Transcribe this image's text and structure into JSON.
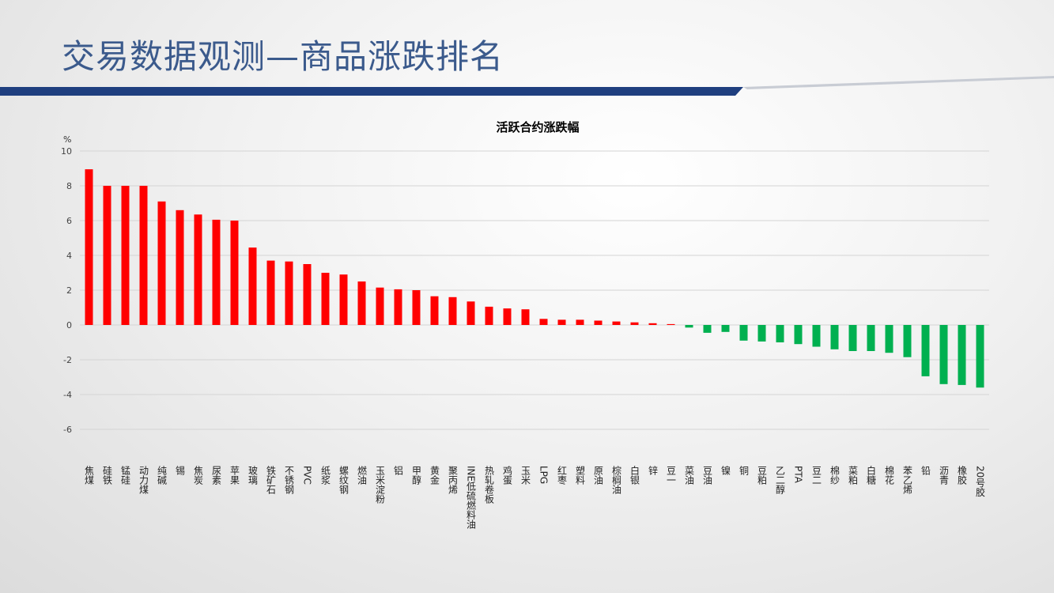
{
  "header": {
    "title": "交易数据观测—商品涨跌排名"
  },
  "chart_data": {
    "type": "bar",
    "title": "活跃合约涨跌幅",
    "y_label": "%",
    "categories": [
      "焦煤",
      "硅铁",
      "锰硅",
      "动力煤",
      "纯碱",
      "锡",
      "焦炭",
      "尿素",
      "苹果",
      "玻璃",
      "铁矿石",
      "不锈钢",
      "PVC",
      "纸浆",
      "螺纹钢",
      "燃油",
      "玉米淀粉",
      "铝",
      "甲醇",
      "黄金",
      "聚丙烯",
      "INE低硫燃料油",
      "热轧卷板",
      "鸡蛋",
      "玉米",
      "LPG",
      "红枣",
      "塑料",
      "原油",
      "棕榈油",
      "白银",
      "锌",
      "豆一",
      "菜油",
      "豆油",
      "镍",
      "铜",
      "豆粕",
      "乙二醇",
      "PTA",
      "豆二",
      "棉纱",
      "菜粕",
      "白糖",
      "棉花",
      "苯乙烯",
      "铅",
      "沥青",
      "橡胶",
      "20号胶"
    ],
    "values": [
      8.95,
      8.0,
      8.0,
      8.0,
      7.1,
      6.6,
      6.35,
      6.05,
      6.0,
      4.45,
      3.7,
      3.65,
      3.5,
      3.0,
      2.9,
      2.5,
      2.15,
      2.05,
      2.0,
      1.65,
      1.6,
      1.35,
      1.05,
      0.95,
      0.9,
      0.35,
      0.3,
      0.3,
      0.25,
      0.2,
      0.15,
      0.1,
      0.05,
      -0.15,
      -0.45,
      -0.4,
      -0.9,
      -0.95,
      -1.0,
      -1.1,
      -1.25,
      -1.4,
      -1.5,
      -1.5,
      -1.6,
      -1.85,
      -2.95,
      -3.4,
      -3.45,
      -3.6
    ],
    "positive_color": "#ff0000",
    "negative_color": "#00b050",
    "ylim": [
      -8,
      10
    ],
    "yticks": [
      -6,
      -4,
      -2,
      0,
      2,
      4,
      6,
      8,
      10
    ],
    "grid": true
  }
}
